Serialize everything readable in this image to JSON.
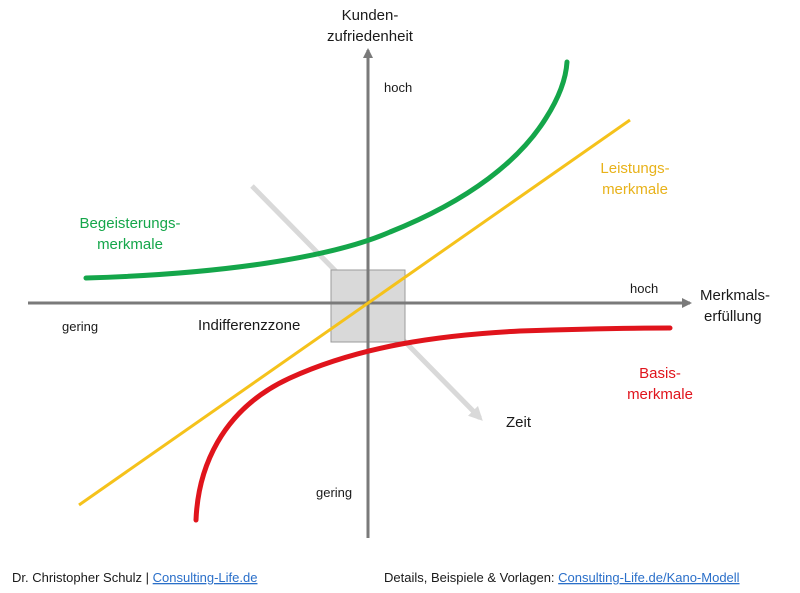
{
  "axes": {
    "y_title_line1": "Kunden-",
    "y_title_line2": "zufriedenheit",
    "x_title_line1": "Merkmals-",
    "x_title_line2": "erfüllung",
    "y_high": "hoch",
    "y_low": "gering",
    "x_high": "hoch",
    "x_low": "gering"
  },
  "curves": {
    "excitement_line1": "Begeisterungs-",
    "excitement_line2": "merkmale",
    "performance_line1": "Leistungs-",
    "performance_line2": "merkmale",
    "basic_line1": "Basis-",
    "basic_line2": "merkmale"
  },
  "zone_label": "Indifferenzzone",
  "time_label": "Zeit",
  "footer": {
    "author": "Dr. Christopher Schulz |",
    "author_link": "Consulting-Life.de",
    "details": "Details, Beispiele & Vorlagen:",
    "details_link": "Consulting-Life.de/Kano-Modell"
  },
  "colors": {
    "excitement": "#14a64a",
    "performance": "#f5c21b",
    "basic": "#e0141c",
    "axis": "#7a7a7a",
    "time_arrow": "#d9d9d9",
    "zone_fill": "#d9d9d9",
    "excitement_text": "#14a64a",
    "performance_text": "#e8b21a",
    "basic_text": "#e0141c"
  }
}
